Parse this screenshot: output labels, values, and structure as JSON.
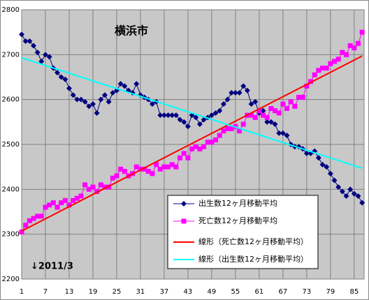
{
  "chart_data": {
    "type": "line",
    "title": "横浜市",
    "annotation": "↓2011/3",
    "x": [
      1,
      2,
      3,
      4,
      5,
      6,
      7,
      8,
      9,
      10,
      11,
      12,
      13,
      14,
      15,
      16,
      17,
      18,
      19,
      20,
      21,
      22,
      23,
      24,
      25,
      26,
      27,
      28,
      29,
      30,
      31,
      32,
      33,
      34,
      35,
      36,
      37,
      38,
      39,
      40,
      41,
      42,
      43,
      44,
      45,
      46,
      47,
      48,
      49,
      50,
      51,
      52,
      53,
      54,
      55,
      56,
      57,
      58,
      59,
      60,
      61,
      62,
      63,
      64,
      65,
      66,
      67,
      68,
      69,
      70,
      71,
      72,
      73,
      74,
      75,
      76,
      77,
      78,
      79,
      80,
      81,
      82,
      83,
      84,
      85,
      86,
      87
    ],
    "series": [
      {
        "name": "出生数12ヶ月移動平均",
        "color": "#000080",
        "marker": "diamond",
        "values": [
          2745,
          2730,
          2730,
          2720,
          2705,
          2685,
          2700,
          2695,
          2670,
          2660,
          2650,
          2645,
          2625,
          2610,
          2600,
          2600,
          2595,
          2585,
          2590,
          2570,
          2600,
          2610,
          2595,
          2615,
          2620,
          2635,
          2630,
          2620,
          2615,
          2635,
          2610,
          2605,
          2600,
          2590,
          2595,
          2565,
          2565,
          2565,
          2565,
          2565,
          2555,
          2550,
          2540,
          2565,
          2560,
          2545,
          2555,
          2560,
          2565,
          2570,
          2575,
          2590,
          2600,
          2615,
          2615,
          2615,
          2630,
          2620,
          2590,
          2595,
          2570,
          2575,
          2550,
          2550,
          2545,
          2525,
          2525,
          2520,
          2500,
          2495,
          2495,
          2490,
          2480,
          2480,
          2485,
          2470,
          2455,
          2450,
          2435,
          2420,
          2405,
          2395,
          2385,
          2400,
          2390,
          2385,
          2370
        ]
      },
      {
        "name": "死亡数12ヶ月移動平均",
        "color": "#ff00ff",
        "marker": "square",
        "values": [
          2305,
          2320,
          2330,
          2335,
          2340,
          2340,
          2360,
          2365,
          2370,
          2360,
          2370,
          2375,
          2365,
          2375,
          2380,
          2385,
          2410,
          2400,
          2405,
          2395,
          2410,
          2405,
          2405,
          2425,
          2430,
          2445,
          2440,
          2430,
          2435,
          2450,
          2445,
          2445,
          2440,
          2435,
          2455,
          2445,
          2450,
          2450,
          2455,
          2450,
          2470,
          2480,
          2470,
          2490,
          2495,
          2490,
          2495,
          2505,
          2505,
          2510,
          2520,
          2530,
          2535,
          2535,
          2540,
          2530,
          2545,
          2565,
          2565,
          2560,
          2575,
          2565,
          2560,
          2580,
          2575,
          2570,
          2590,
          2580,
          2595,
          2585,
          2605,
          2605,
          2630,
          2640,
          2655,
          2665,
          2670,
          2670,
          2680,
          2685,
          2690,
          2705,
          2700,
          2720,
          2715,
          2725,
          2750
        ]
      },
      {
        "name": "線形（死亡数12ヶ月移動平均）",
        "color": "#ff0000",
        "x": [
          1,
          87
        ],
        "values": [
          2307,
          2697
        ]
      },
      {
        "name": "線形（出生数12ヶ月移動平均）",
        "color": "#00ffff",
        "x": [
          1,
          87
        ],
        "values": [
          2693,
          2447
        ]
      }
    ],
    "xlim": [
      1,
      87.5
    ],
    "ylim": [
      2200,
      2800
    ],
    "xticks": [
      1,
      7,
      13,
      19,
      25,
      31,
      37,
      43,
      49,
      55,
      61,
      67,
      73,
      79,
      85
    ],
    "yticks": [
      2200,
      2300,
      2400,
      2500,
      2600,
      2700,
      2800
    ],
    "grid": true
  }
}
